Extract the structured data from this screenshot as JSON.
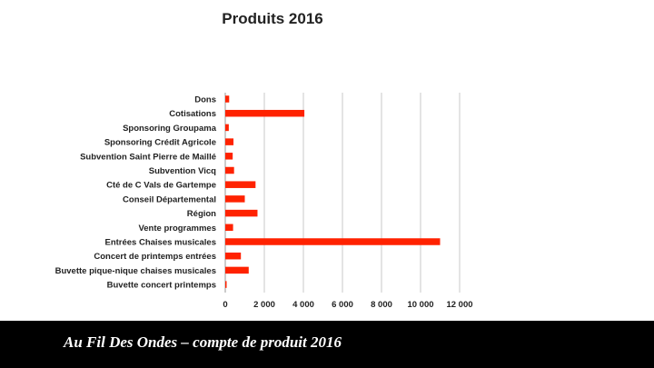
{
  "chart_data": {
    "type": "bar",
    "orientation": "horizontal",
    "title": "Produits 2016",
    "categories": [
      "Dons",
      "Cotisations",
      "Sponsoring Groupama",
      "Sponsoring  Crédit Agricole",
      "Subvention Saint Pierre de Maillé",
      "Subvention Vicq",
      "Cté de C Vals de Gartempe",
      "Conseil Départemental",
      "Région",
      "Vente programmes",
      "Entrées Chaises musicales",
      "Concert de printemps entrées",
      "Buvette pique-nique chaises musicales",
      "Buvette  concert printemps"
    ],
    "values": [
      200,
      4050,
      180,
      420,
      380,
      450,
      1550,
      1000,
      1650,
      400,
      11000,
      800,
      1200,
      30
    ],
    "xlim": [
      0,
      12000
    ],
    "xticks": [
      "0",
      "2 000",
      "4 000",
      "6 000",
      "8 000",
      "10 000",
      "12 000"
    ],
    "xtick_values": [
      0,
      2000,
      4000,
      6000,
      8000,
      10000,
      12000
    ],
    "grid": "vertical",
    "legend": "none",
    "colors": {
      "bar": "#ff2200",
      "grid": "#c8c8c8"
    }
  },
  "footer": {
    "caption": "Au Fil Des Ondes – compte de produit 2016",
    "background": "#000000"
  }
}
